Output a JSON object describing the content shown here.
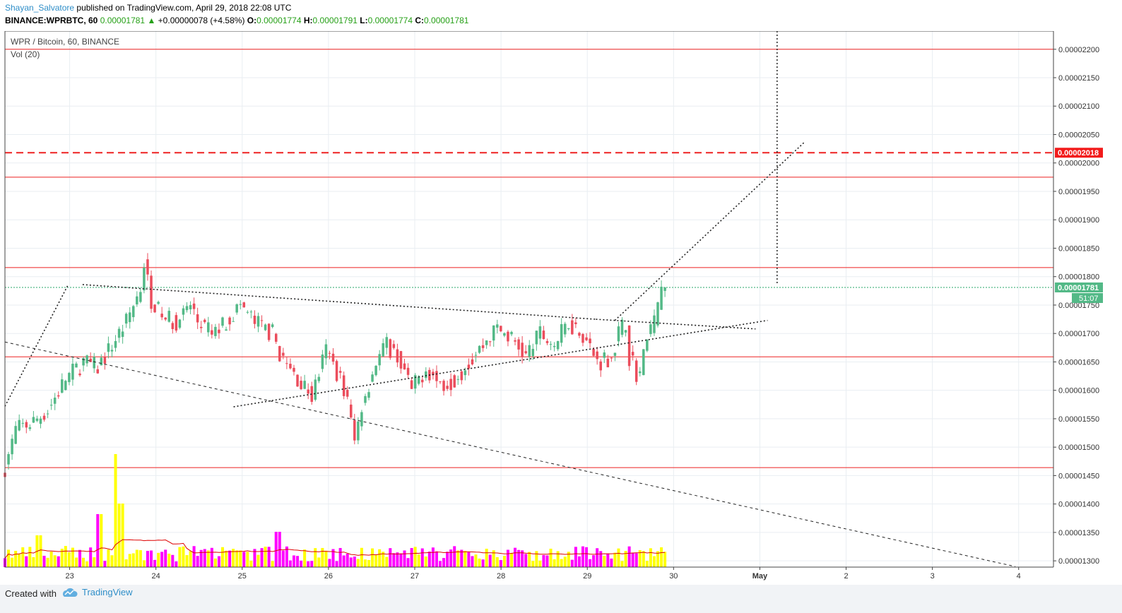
{
  "header": {
    "author": "Shayan_Salvatore",
    "published_text": " published on TradingView.com, April 29, 2018 22:08 UTC",
    "symbol": "BINANCE:WPRBTC, 60",
    "last": "0.00001781",
    "change": "+0.00000078 (+4.58%)",
    "o_label": "O:",
    "o": "0.00001774",
    "h_label": "H:",
    "h": "0.00001791",
    "l_label": "L:",
    "l": "0.00001774",
    "c_label": "C:",
    "c": "0.00001781"
  },
  "legend": {
    "title": "WPR / Bitcoin, 60, BINANCE",
    "volume": "Vol (20)"
  },
  "footer": {
    "created_with": "Created with",
    "brand": "TradingView"
  },
  "chart_data": {
    "type": "candlestick",
    "title": "WPR / Bitcoin, 60, BINANCE",
    "price_axis": {
      "ticks": [
        1.3e-05,
        1.35e-05,
        1.4e-05,
        1.45e-05,
        1.5e-05,
        1.55e-05,
        1.6e-05,
        1.65e-05,
        1.7e-05,
        1.75e-05,
        1.8e-05,
        1.85e-05,
        1.9e-05,
        1.95e-05,
        2e-05,
        2.05e-05,
        2.1e-05,
        2.15e-05,
        2.2e-05
      ],
      "tick_labels": [
        "0.00001300",
        "0.00001350",
        "0.00001400",
        "0.00001450",
        "0.00001500",
        "0.00001550",
        "0.00001600",
        "0.00001650",
        "0.00001700",
        "0.00001750",
        "0.00001800",
        "0.00001850",
        "0.00001900",
        "0.00001950",
        "0.00002000",
        "0.00002050",
        "0.00002100",
        "0.00002150",
        "0.00002200"
      ],
      "range": [
        1.289e-05,
        2.232e-05
      ]
    },
    "time_axis": {
      "labels": [
        "23",
        "24",
        "25",
        "26",
        "27",
        "28",
        "29",
        "30",
        "May",
        "2",
        "3",
        "4"
      ],
      "day_start": [
        22.25,
        27.0
      ]
    },
    "last_price_label": "0.00001781",
    "countdown_label": "51:07",
    "target_price_label": "0.00002018",
    "colors": {
      "up": "#53b987",
      "down": "#eb4d5c",
      "vol_up": "#ffff00",
      "vol_down": "#ff00ff",
      "level": "#ee2222",
      "vol_ma": "#dd0000"
    },
    "horizontal_levels": [
      2.2e-05,
      2.018e-05,
      1.975e-05,
      1.816e-05,
      1.659e-05,
      1.464e-05
    ],
    "last_price": 1.781e-05,
    "trendlines": [
      {
        "style": "dotted",
        "from": [
          22.25,
          1.572e-05
        ],
        "to": [
          22.98,
          1.785e-05
        ]
      },
      {
        "style": "dotted",
        "from": [
          23.15,
          1.786e-05
        ],
        "to": [
          29.1,
          1.725e-05
        ]
      },
      {
        "style": "dotted",
        "from": [
          29.1,
          1.725e-05
        ],
        "to": [
          30.95,
          1.708e-05
        ]
      },
      {
        "style": "dotted",
        "from": [
          24.9,
          1.571e-05
        ],
        "to": [
          31.09,
          1.723e-05
        ]
      },
      {
        "style": "dotted",
        "from": [
          29.32,
          1.723e-05
        ],
        "to": [
          31.52,
          2.037e-05
        ]
      },
      {
        "style": "dotted-vertical",
        "x": 31.2,
        "y1": 2.232e-05,
        "y2": 1.788e-05
      },
      {
        "style": "dashed",
        "from": [
          22.25,
          1.685e-05
        ],
        "to": [
          33.96,
          1.29e-05
        ]
      }
    ],
    "candles_summary": "hourly OHLC Apr 22 – Apr 29 2018, approx. 185 bars; volume panel with 20-period MA"
  }
}
